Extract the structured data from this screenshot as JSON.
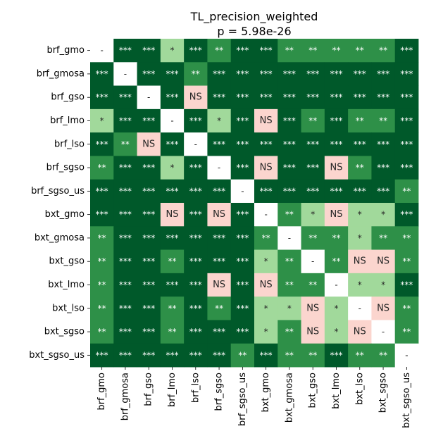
{
  "chart_data": {
    "type": "heatmap",
    "title": "TL_precision_weighted",
    "subtitle": "p = 5.98e-26",
    "xlabel": "",
    "ylabel": "",
    "labels": [
      "brf_gmo",
      "brf_gmosa",
      "brf_gso",
      "brf_lmo",
      "brf_lso",
      "brf_sgso",
      "brf_sgso_us",
      "bxt_gmo",
      "bxt_gmosa",
      "bxt_gso",
      "bxt_lmo",
      "bxt_lso",
      "bxt_sgso",
      "bxt_sgso_us"
    ],
    "matrix": [
      [
        "-",
        "***",
        "***",
        "*",
        "***",
        "**",
        "***",
        "***",
        "**",
        "**",
        "**",
        "**",
        "**",
        "***"
      ],
      [
        "***",
        "-",
        "***",
        "***",
        "**",
        "***",
        "***",
        "***",
        "***",
        "***",
        "***",
        "***",
        "***",
        "***"
      ],
      [
        "***",
        "***",
        "-",
        "***",
        "NS",
        "***",
        "***",
        "***",
        "***",
        "***",
        "***",
        "***",
        "***",
        "***"
      ],
      [
        "*",
        "***",
        "***",
        "-",
        "***",
        "*",
        "***",
        "NS",
        "***",
        "**",
        "***",
        "**",
        "**",
        "***"
      ],
      [
        "***",
        "**",
        "NS",
        "***",
        "-",
        "***",
        "***",
        "***",
        "***",
        "***",
        "***",
        "***",
        "***",
        "***"
      ],
      [
        "**",
        "***",
        "***",
        "*",
        "***",
        "-",
        "***",
        "NS",
        "***",
        "***",
        "NS",
        "**",
        "***",
        "***"
      ],
      [
        "***",
        "***",
        "***",
        "***",
        "***",
        "***",
        "-",
        "***",
        "***",
        "***",
        "***",
        "***",
        "***",
        "**"
      ],
      [
        "***",
        "***",
        "***",
        "NS",
        "***",
        "NS",
        "***",
        "-",
        "**",
        "*",
        "NS",
        "*",
        "*",
        "***"
      ],
      [
        "**",
        "***",
        "***",
        "***",
        "***",
        "***",
        "***",
        "**",
        "-",
        "**",
        "**",
        "*",
        "**",
        "**"
      ],
      [
        "**",
        "***",
        "***",
        "**",
        "***",
        "***",
        "***",
        "*",
        "**",
        "-",
        "**",
        "NS",
        "NS",
        "**"
      ],
      [
        "**",
        "***",
        "***",
        "***",
        "***",
        "NS",
        "***",
        "NS",
        "**",
        "**",
        "-",
        "*",
        "*",
        "***"
      ],
      [
        "**",
        "***",
        "***",
        "**",
        "***",
        "**",
        "***",
        "*",
        "*",
        "NS",
        "*",
        "-",
        "NS",
        "**"
      ],
      [
        "**",
        "***",
        "***",
        "**",
        "***",
        "***",
        "***",
        "*",
        "**",
        "NS",
        "*",
        "NS",
        "-",
        "**"
      ],
      [
        "***",
        "***",
        "***",
        "***",
        "***",
        "***",
        "**",
        "***",
        "**",
        "**",
        "***",
        "**",
        "**",
        "-"
      ]
    ],
    "grid": false,
    "legend": "none",
    "colors": {
      "***": "#00592a",
      "**": "#2e9048",
      "*": "#a1d99b",
      "NS": "#fbd5ce",
      "-": "#ffffff"
    },
    "text_colors": {
      "***": "#ffffff",
      "**": "#ffffff",
      "*": "#262626",
      "NS": "#262626",
      "-": "#262626"
    }
  }
}
